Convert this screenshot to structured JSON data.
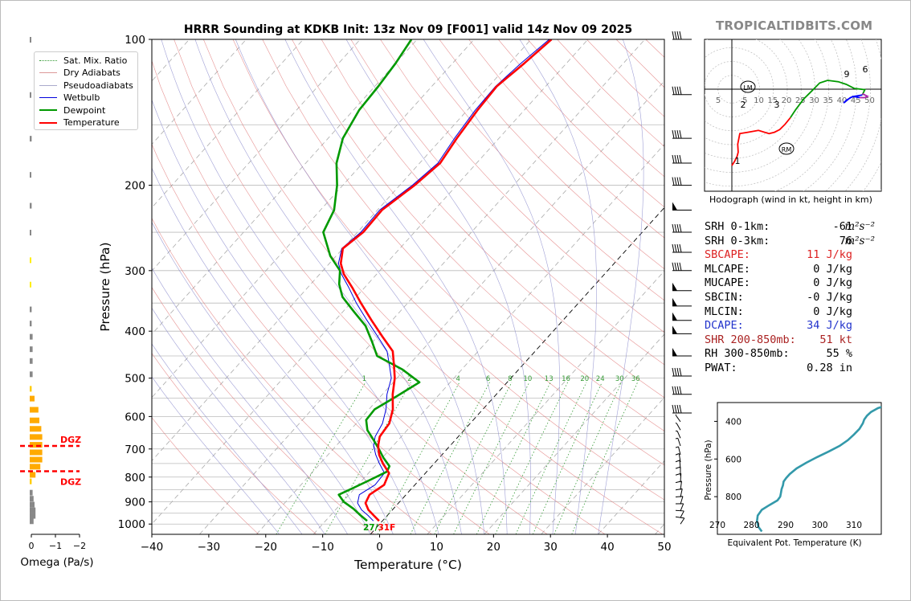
{
  "site": "TROPICALTIDBITS.COM",
  "title": "HRRR Sounding at KDKB Init: 13z Nov 09 [F001] valid 14z Nov 09 2025",
  "colors": {
    "temperature": "#ff0000",
    "dewpoint": "#009900",
    "wetbulb": "#0000dd",
    "dry_adiabat": "#dd6666",
    "moist_adiabat": "#8888cc",
    "mixing_ratio": "#339933",
    "theta_e": "#3399aa",
    "omega": "#ffaa00",
    "dgz": "#ff0000"
  },
  "legend": [
    "Sat. Mix. Ratio",
    "Dry Adiabats",
    "Pseudoadiabats",
    "Wetbulb",
    "Dewpoint",
    "Temperature"
  ],
  "surface_label": {
    "td": "27",
    "sep": "/",
    "t": "31F"
  },
  "hodograph": {
    "caption": "Hodograph (wind in kt, height in km)",
    "ring_labels": [
      "5",
      "5",
      "10",
      "15",
      "20",
      "25",
      "30",
      "35",
      "40",
      "45",
      "50"
    ],
    "height_labels": [
      "1",
      "2",
      "3",
      "6",
      "9"
    ],
    "lm": "LM",
    "rm": "RM",
    "points": [
      [
        0,
        0
      ],
      [
        1,
        1.5
      ],
      [
        2,
        3.5
      ],
      [
        2.4,
        5
      ],
      [
        2.2,
        8
      ],
      [
        3,
        12
      ],
      [
        6,
        12.5
      ],
      [
        10,
        13.2
      ],
      [
        14,
        12
      ],
      [
        16,
        12.5
      ],
      [
        18,
        13.5
      ],
      [
        20,
        15.5
      ],
      [
        22,
        18
      ],
      [
        24,
        21
      ],
      [
        27,
        25
      ],
      [
        30,
        28
      ],
      [
        33,
        31
      ],
      [
        36,
        32
      ],
      [
        40,
        31.5
      ],
      [
        43,
        30.5
      ],
      [
        46,
        29
      ],
      [
        50,
        28.5
      ],
      [
        49,
        26.5
      ],
      [
        46,
        26
      ],
      [
        44.5,
        25.5
      ],
      [
        42,
        23.5
      ],
      [
        43,
        24.5
      ],
      [
        45.5,
        26
      ],
      [
        48,
        25.5
      ],
      [
        50,
        25.5
      ],
      [
        51,
        26
      ],
      [
        49,
        27
      ]
    ],
    "lm_pos": [
      6,
      -2
    ],
    "rm_pos": [
      19,
      -5
    ]
  },
  "indices": [
    {
      "name": "SRH 0-1km:",
      "value": "-61",
      "unit": "m²s⁻²",
      "color": "#000000"
    },
    {
      "name": "SRH 0-3km:",
      "value": "76",
      "unit": "m²s⁻²",
      "color": "#000000"
    },
    {
      "name": "SBCAPE:",
      "value": "11 J/kg",
      "unit": "",
      "color": "#dd2222"
    },
    {
      "name": "MLCAPE:",
      "value": "0 J/kg",
      "unit": "",
      "color": "#000000"
    },
    {
      "name": "MUCAPE:",
      "value": "0 J/kg",
      "unit": "",
      "color": "#000000"
    },
    {
      "name": "SBCIN:",
      "value": "-0 J/kg",
      "unit": "",
      "color": "#000000"
    },
    {
      "name": "MLCIN:",
      "value": "0 J/kg",
      "unit": "",
      "color": "#000000"
    },
    {
      "name": "DCAPE:",
      "value": "34 J/kg",
      "unit": "",
      "color": "#2233cc"
    },
    {
      "name": "SHR 200-850mb:",
      "value": "51 kt",
      "unit": "",
      "color": "#aa2222"
    },
    {
      "name": "RH 300-850mb:",
      "value": "55 %",
      "unit": "",
      "color": "#000000"
    },
    {
      "name": "PWAT:",
      "value": "0.28 in",
      "unit": "",
      "color": "#000000"
    }
  ],
  "chart_data": [
    {
      "type": "line",
      "title": "HRRR Sounding at KDKB Init: 13z Nov 09 [F001] valid 14z Nov 09 2025",
      "xlabel": "Temperature (°C)",
      "ylabel": "Pressure (hPa)",
      "xlim": [
        -40,
        50
      ],
      "ylim": [
        1050,
        100
      ],
      "y_scale": "log (skew-T)",
      "xticks": [
        "−40",
        "−30",
        "−20",
        "−10",
        "0",
        "10",
        "20",
        "30",
        "40",
        "50"
      ],
      "yticks": [
        "100",
        "200",
        "300",
        "400",
        "500",
        "600",
        "700",
        "800",
        "900",
        "1000"
      ],
      "mixing_ratio_labels": [
        "1",
        "2",
        "4",
        "6",
        "8",
        "10",
        "13",
        "16",
        "20",
        "24",
        "30",
        "36"
      ],
      "series": [
        {
          "name": "Temperature",
          "pressure": [
            985,
            960,
            935,
            905,
            870,
            830,
            785,
            750,
            720,
            690,
            660,
            620,
            580,
            540,
            500,
            470,
            440,
            410,
            380,
            350,
            325,
            305,
            290,
            270,
            250,
            225,
            200,
            180,
            160,
            140,
            125,
            112,
            100
          ],
          "values": [
            -0.6,
            -2.4,
            -4.2,
            -5.8,
            -6.4,
            -5.4,
            -6.4,
            -9.0,
            -11.0,
            -12.6,
            -13.8,
            -14.2,
            -15.8,
            -18.2,
            -20.4,
            -22.6,
            -25.0,
            -29.2,
            -33.6,
            -38.2,
            -42.2,
            -45.8,
            -48.0,
            -50.0,
            -49.0,
            -49.2,
            -47.4,
            -46.4,
            -47.4,
            -48.2,
            -48.6,
            -47.4,
            -46.4
          ]
        },
        {
          "name": "Dewpoint",
          "pressure": [
            985,
            960,
            930,
            900,
            870,
            840,
            810,
            780,
            760,
            730,
            700,
            670,
            640,
            610,
            580,
            545,
            510,
            480,
            450,
            420,
            390,
            365,
            340,
            320,
            300,
            280,
            250,
            225,
            200,
            180,
            160,
            140,
            125,
            112,
            100
          ],
          "values": [
            -2.7,
            -4.7,
            -7.0,
            -9.8,
            -11.8,
            -10.2,
            -8.6,
            -7.0,
            -7.4,
            -9.8,
            -12.0,
            -14.4,
            -17.0,
            -18.8,
            -19.0,
            -17.2,
            -15.4,
            -20.4,
            -27.0,
            -30.2,
            -33.8,
            -38.0,
            -42.4,
            -45.0,
            -47.0,
            -51.0,
            -56.0,
            -57.6,
            -61.0,
            -64.6,
            -67.4,
            -69.0,
            -69.4,
            -70.0,
            -71.0
          ]
        },
        {
          "name": "Wetbulb",
          "pressure": [
            985,
            960,
            935,
            905,
            870,
            830,
            785,
            750,
            720,
            690,
            660,
            620,
            580,
            540,
            500,
            470,
            440,
            410,
            380,
            350,
            325,
            305,
            290,
            270,
            250,
            225,
            200,
            180,
            160,
            140,
            125,
            112,
            100
          ],
          "values": [
            -1.6,
            -3.4,
            -5.4,
            -7.2,
            -8.2,
            -7.0,
            -7.2,
            -9.6,
            -11.6,
            -13.4,
            -14.6,
            -15.4,
            -17.0,
            -19.2,
            -21.0,
            -23.4,
            -26.0,
            -30.0,
            -34.4,
            -39.0,
            -42.8,
            -46.2,
            -48.4,
            -50.2,
            -49.4,
            -49.6,
            -47.8,
            -46.8,
            -47.8,
            -48.6,
            -48.8,
            -48.0,
            -46.8
          ]
        }
      ]
    },
    {
      "type": "bar",
      "xlabel": "Omega (Pa/s)",
      "xticks": [
        "0",
        "−1",
        "−2"
      ],
      "annotations": [
        {
          "text": "DGZ",
          "pressure": 690
        },
        {
          "text": "DGZ",
          "pressure": 778
        }
      ],
      "levels": [
        {
          "p": 100,
          "w": 0.05,
          "c": "#888888"
        },
        {
          "p": 130,
          "w": 0.05,
          "c": "#888888"
        },
        {
          "p": 160,
          "w": 0.1,
          "c": "#888888"
        },
        {
          "p": 190,
          "w": 0.05,
          "c": "#888888"
        },
        {
          "p": 220,
          "w": 0.1,
          "c": "#888888"
        },
        {
          "p": 250,
          "w": 0.05,
          "c": "#888888"
        },
        {
          "p": 285,
          "w": 0.05,
          "c": "#ffee00"
        },
        {
          "p": 320,
          "w": 0.05,
          "c": "#ffee00"
        },
        {
          "p": 360,
          "w": 0.1,
          "c": "#888888"
        },
        {
          "p": 385,
          "w": 0.1,
          "c": "#888888"
        },
        {
          "p": 410,
          "w": 0.15,
          "c": "#888888"
        },
        {
          "p": 435,
          "w": 0.15,
          "c": "#888888"
        },
        {
          "p": 460,
          "w": 0.15,
          "c": "#888888"
        },
        {
          "p": 490,
          "w": 0.15,
          "c": "#888888"
        },
        {
          "p": 525,
          "w": 0.1,
          "c": "#ffcc00"
        },
        {
          "p": 550,
          "w": 0.25,
          "c": "#ffaa00"
        },
        {
          "p": 580,
          "w": 0.45,
          "c": "#ffaa00"
        },
        {
          "p": 610,
          "w": 0.5,
          "c": "#ffaa00"
        },
        {
          "p": 635,
          "w": 0.6,
          "c": "#ffaa00"
        },
        {
          "p": 660,
          "w": 0.65,
          "c": "#ffaa00"
        },
        {
          "p": 685,
          "w": 0.65,
          "c": "#ffaa00"
        },
        {
          "p": 710,
          "w": 0.65,
          "c": "#ffaa00"
        },
        {
          "p": 735,
          "w": 0.65,
          "c": "#ffaa00"
        },
        {
          "p": 760,
          "w": 0.55,
          "c": "#ffaa00"
        },
        {
          "p": 790,
          "w": 0.3,
          "c": "#ffaa00"
        },
        {
          "p": 815,
          "w": 0.1,
          "c": "#ffcc00"
        },
        {
          "p": 860,
          "w": 0.15,
          "c": "#888888"
        },
        {
          "p": 885,
          "w": 0.2,
          "c": "#888888"
        },
        {
          "p": 910,
          "w": 0.25,
          "c": "#888888"
        },
        {
          "p": 935,
          "w": 0.3,
          "c": "#888888"
        },
        {
          "p": 960,
          "w": 0.3,
          "c": "#888888"
        },
        {
          "p": 985,
          "w": 0.2,
          "c": "#888888"
        }
      ]
    },
    {
      "type": "line",
      "xlabel": "Equivalent Pot. Temperature (K)",
      "ylabel": "Pressure (hPa)",
      "xlim": [
        270,
        318
      ],
      "ylim": [
        1000,
        300
      ],
      "xticks": [
        "270",
        "280",
        "290",
        "300",
        "310"
      ],
      "yticks": [
        "400",
        "600",
        "800"
      ],
      "series": [
        {
          "name": "Equivalent Pot. Temperature",
          "pressure": [
            985,
            960,
            930,
            900,
            870,
            845,
            820,
            800,
            780,
            760,
            740,
            720,
            700,
            680,
            650,
            620,
            590,
            560,
            530,
            500,
            470,
            440,
            410,
            390,
            370,
            350,
            330,
            315,
            300
          ],
          "values": [
            283.0,
            282.0,
            281.6,
            281.8,
            283.0,
            285.2,
            287.6,
            288.4,
            288.6,
            288.8,
            289.2,
            289.4,
            290.2,
            291.2,
            293.2,
            296.0,
            299.2,
            302.6,
            305.8,
            308.2,
            310.0,
            311.6,
            312.6,
            313.0,
            313.8,
            315.0,
            317.0,
            319.5,
            322.0
          ]
        }
      ]
    }
  ],
  "barbs": [
    {
      "p": 100,
      "spd": 50,
      "type": "barb"
    },
    {
      "p": 130,
      "spd": 45,
      "type": "barb"
    },
    {
      "p": 160,
      "spd": 45,
      "type": "barb"
    },
    {
      "p": 180,
      "spd": 45,
      "type": "barb"
    },
    {
      "p": 200,
      "spd": 45,
      "type": "barb"
    },
    {
      "p": 225,
      "spd": 50,
      "type": "flag"
    },
    {
      "p": 250,
      "spd": 45,
      "type": "barb"
    },
    {
      "p": 275,
      "spd": 45,
      "type": "barb"
    },
    {
      "p": 300,
      "spd": 45,
      "type": "barb"
    },
    {
      "p": 330,
      "spd": 50,
      "type": "flag"
    },
    {
      "p": 355,
      "spd": 50,
      "type": "flag"
    },
    {
      "p": 380,
      "spd": 50,
      "type": "flag"
    },
    {
      "p": 405,
      "spd": 50,
      "type": "flag"
    },
    {
      "p": 450,
      "spd": 50,
      "type": "flag"
    },
    {
      "p": 495,
      "spd": 45,
      "type": "barb"
    },
    {
      "p": 540,
      "spd": 40,
      "type": "barb"
    },
    {
      "p": 590,
      "spd": 35,
      "type": "barb"
    }
  ],
  "low_barbs": [
    615,
    640,
    665,
    690,
    720,
    745,
    770,
    795,
    820,
    850,
    880,
    910,
    940,
    970,
    1000
  ]
}
